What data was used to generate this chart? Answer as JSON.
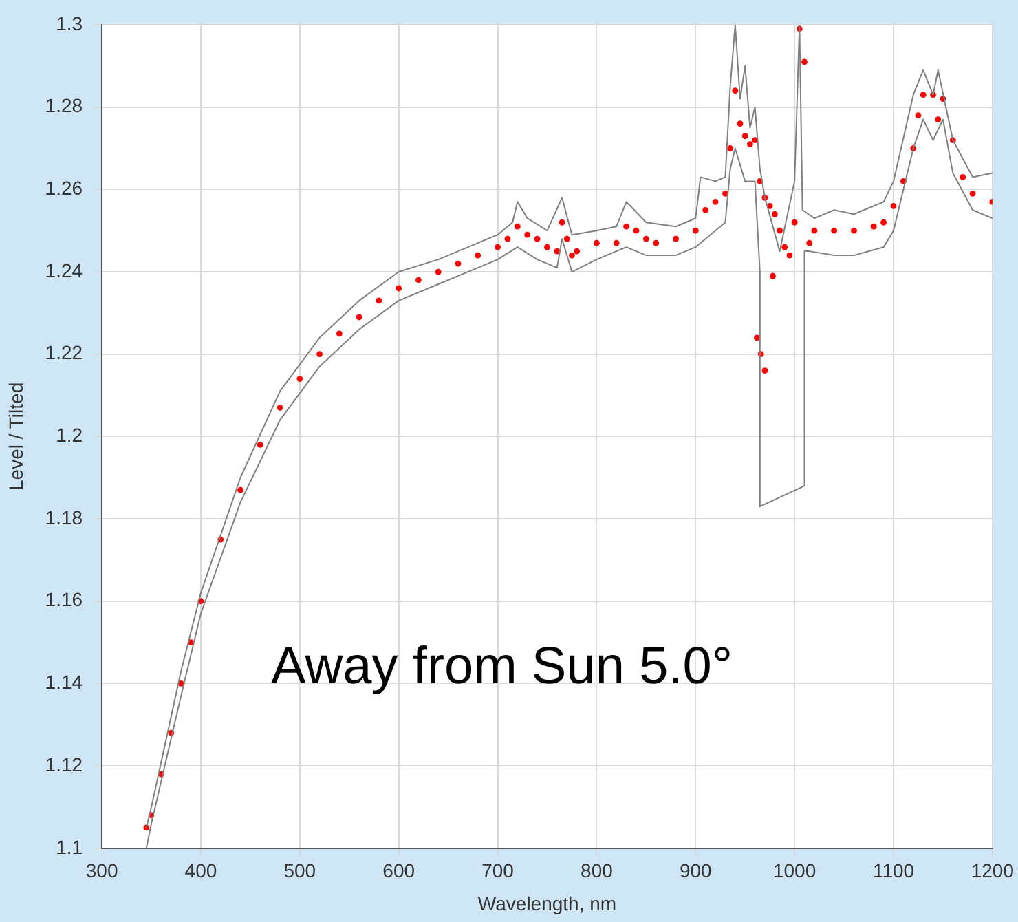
{
  "chart_data": {
    "type": "scatter",
    "xlabel": "Wavelength, nm",
    "ylabel": "Level / Tilted",
    "annotations": [
      "Away from Sun 5.0°"
    ],
    "xlim": [
      300,
      1200
    ],
    "xticks": [
      300,
      400,
      500,
      600,
      700,
      800,
      900,
      1000,
      1100,
      1200
    ],
    "ylim": [
      1.1,
      1.3
    ],
    "yticks": [
      1.1,
      1.12,
      1.14,
      1.16,
      1.18,
      1.2,
      1.22,
      1.24,
      1.26,
      1.28,
      1.3
    ],
    "grid": true,
    "legend": false,
    "series": [
      {
        "type": "line",
        "marker": "none",
        "color": "#808080",
        "x": [
          345,
          350,
          380,
          400,
          440,
          480,
          520,
          560,
          600,
          640,
          680,
          700,
          715,
          720,
          730,
          750,
          765,
          775,
          800,
          820,
          830,
          850,
          880,
          900,
          905,
          920,
          930,
          935,
          940,
          945,
          950,
          955,
          960,
          965,
          970,
          985,
          1000,
          1005,
          1008,
          1020,
          1040,
          1060,
          1090,
          1100,
          1120,
          1130,
          1140,
          1145,
          1160,
          1180,
          1200
        ],
        "values": [
          1.105,
          1.11,
          1.143,
          1.162,
          1.19,
          1.211,
          1.224,
          1.233,
          1.24,
          1.243,
          1.247,
          1.249,
          1.252,
          1.257,
          1.253,
          1.25,
          1.258,
          1.249,
          1.25,
          1.251,
          1.257,
          1.252,
          1.251,
          1.253,
          1.263,
          1.262,
          1.263,
          1.285,
          1.3,
          1.282,
          1.29,
          1.275,
          1.28,
          1.265,
          1.258,
          1.245,
          1.262,
          1.3,
          1.255,
          1.253,
          1.255,
          1.254,
          1.257,
          1.262,
          1.283,
          1.289,
          1.283,
          1.289,
          1.272,
          1.263,
          1.264
        ]
      },
      {
        "type": "line",
        "marker": "none",
        "color": "#808080",
        "x": [
          345,
          350,
          380,
          400,
          440,
          480,
          520,
          560,
          600,
          640,
          680,
          700,
          720,
          740,
          760,
          765,
          775,
          800,
          830,
          850,
          880,
          900,
          920,
          930,
          935,
          940,
          950,
          960,
          965,
          965,
          1010,
          1010,
          1015,
          1040,
          1060,
          1090,
          1100,
          1120,
          1130,
          1140,
          1150,
          1160,
          1180,
          1200
        ],
        "values": [
          1.1,
          1.106,
          1.137,
          1.157,
          1.184,
          1.204,
          1.217,
          1.226,
          1.233,
          1.237,
          1.241,
          1.243,
          1.246,
          1.243,
          1.241,
          1.248,
          1.24,
          1.243,
          1.246,
          1.244,
          1.244,
          1.246,
          1.25,
          1.252,
          1.265,
          1.27,
          1.262,
          1.262,
          1.24,
          1.183,
          1.188,
          1.245,
          1.245,
          1.244,
          1.244,
          1.246,
          1.25,
          1.27,
          1.277,
          1.272,
          1.277,
          1.264,
          1.255,
          1.253
        ]
      },
      {
        "type": "scatter",
        "marker": "circle",
        "color": "#ff0000",
        "x": [
          345,
          350,
          360,
          370,
          380,
          390,
          400,
          420,
          440,
          460,
          480,
          500,
          520,
          540,
          560,
          580,
          600,
          620,
          640,
          660,
          680,
          700,
          710,
          720,
          730,
          740,
          750,
          760,
          765,
          770,
          775,
          780,
          800,
          820,
          830,
          840,
          850,
          860,
          880,
          900,
          910,
          920,
          930,
          935,
          940,
          945,
          950,
          955,
          960,
          962,
          965,
          966,
          970,
          970,
          975,
          978,
          980,
          985,
          990,
          995,
          1000,
          1005,
          1010,
          1015,
          1020,
          1040,
          1060,
          1080,
          1090,
          1100,
          1110,
          1120,
          1125,
          1130,
          1140,
          1145,
          1150,
          1160,
          1170,
          1180,
          1200
        ],
        "values": [
          1.105,
          1.108,
          1.118,
          1.128,
          1.14,
          1.15,
          1.16,
          1.175,
          1.187,
          1.198,
          1.207,
          1.214,
          1.22,
          1.225,
          1.229,
          1.233,
          1.236,
          1.238,
          1.24,
          1.242,
          1.244,
          1.246,
          1.248,
          1.251,
          1.249,
          1.248,
          1.246,
          1.245,
          1.252,
          1.248,
          1.244,
          1.245,
          1.247,
          1.247,
          1.251,
          1.25,
          1.248,
          1.247,
          1.248,
          1.25,
          1.255,
          1.257,
          1.259,
          1.27,
          1.284,
          1.276,
          1.273,
          1.271,
          1.272,
          1.224,
          1.262,
          1.22,
          1.258,
          1.216,
          1.256,
          1.239,
          1.254,
          1.25,
          1.246,
          1.244,
          1.252,
          1.299,
          1.291,
          1.247,
          1.25,
          1.25,
          1.25,
          1.251,
          1.252,
          1.256,
          1.262,
          1.27,
          1.278,
          1.283,
          1.283,
          1.277,
          1.282,
          1.272,
          1.263,
          1.259,
          1.257
        ]
      }
    ]
  }
}
